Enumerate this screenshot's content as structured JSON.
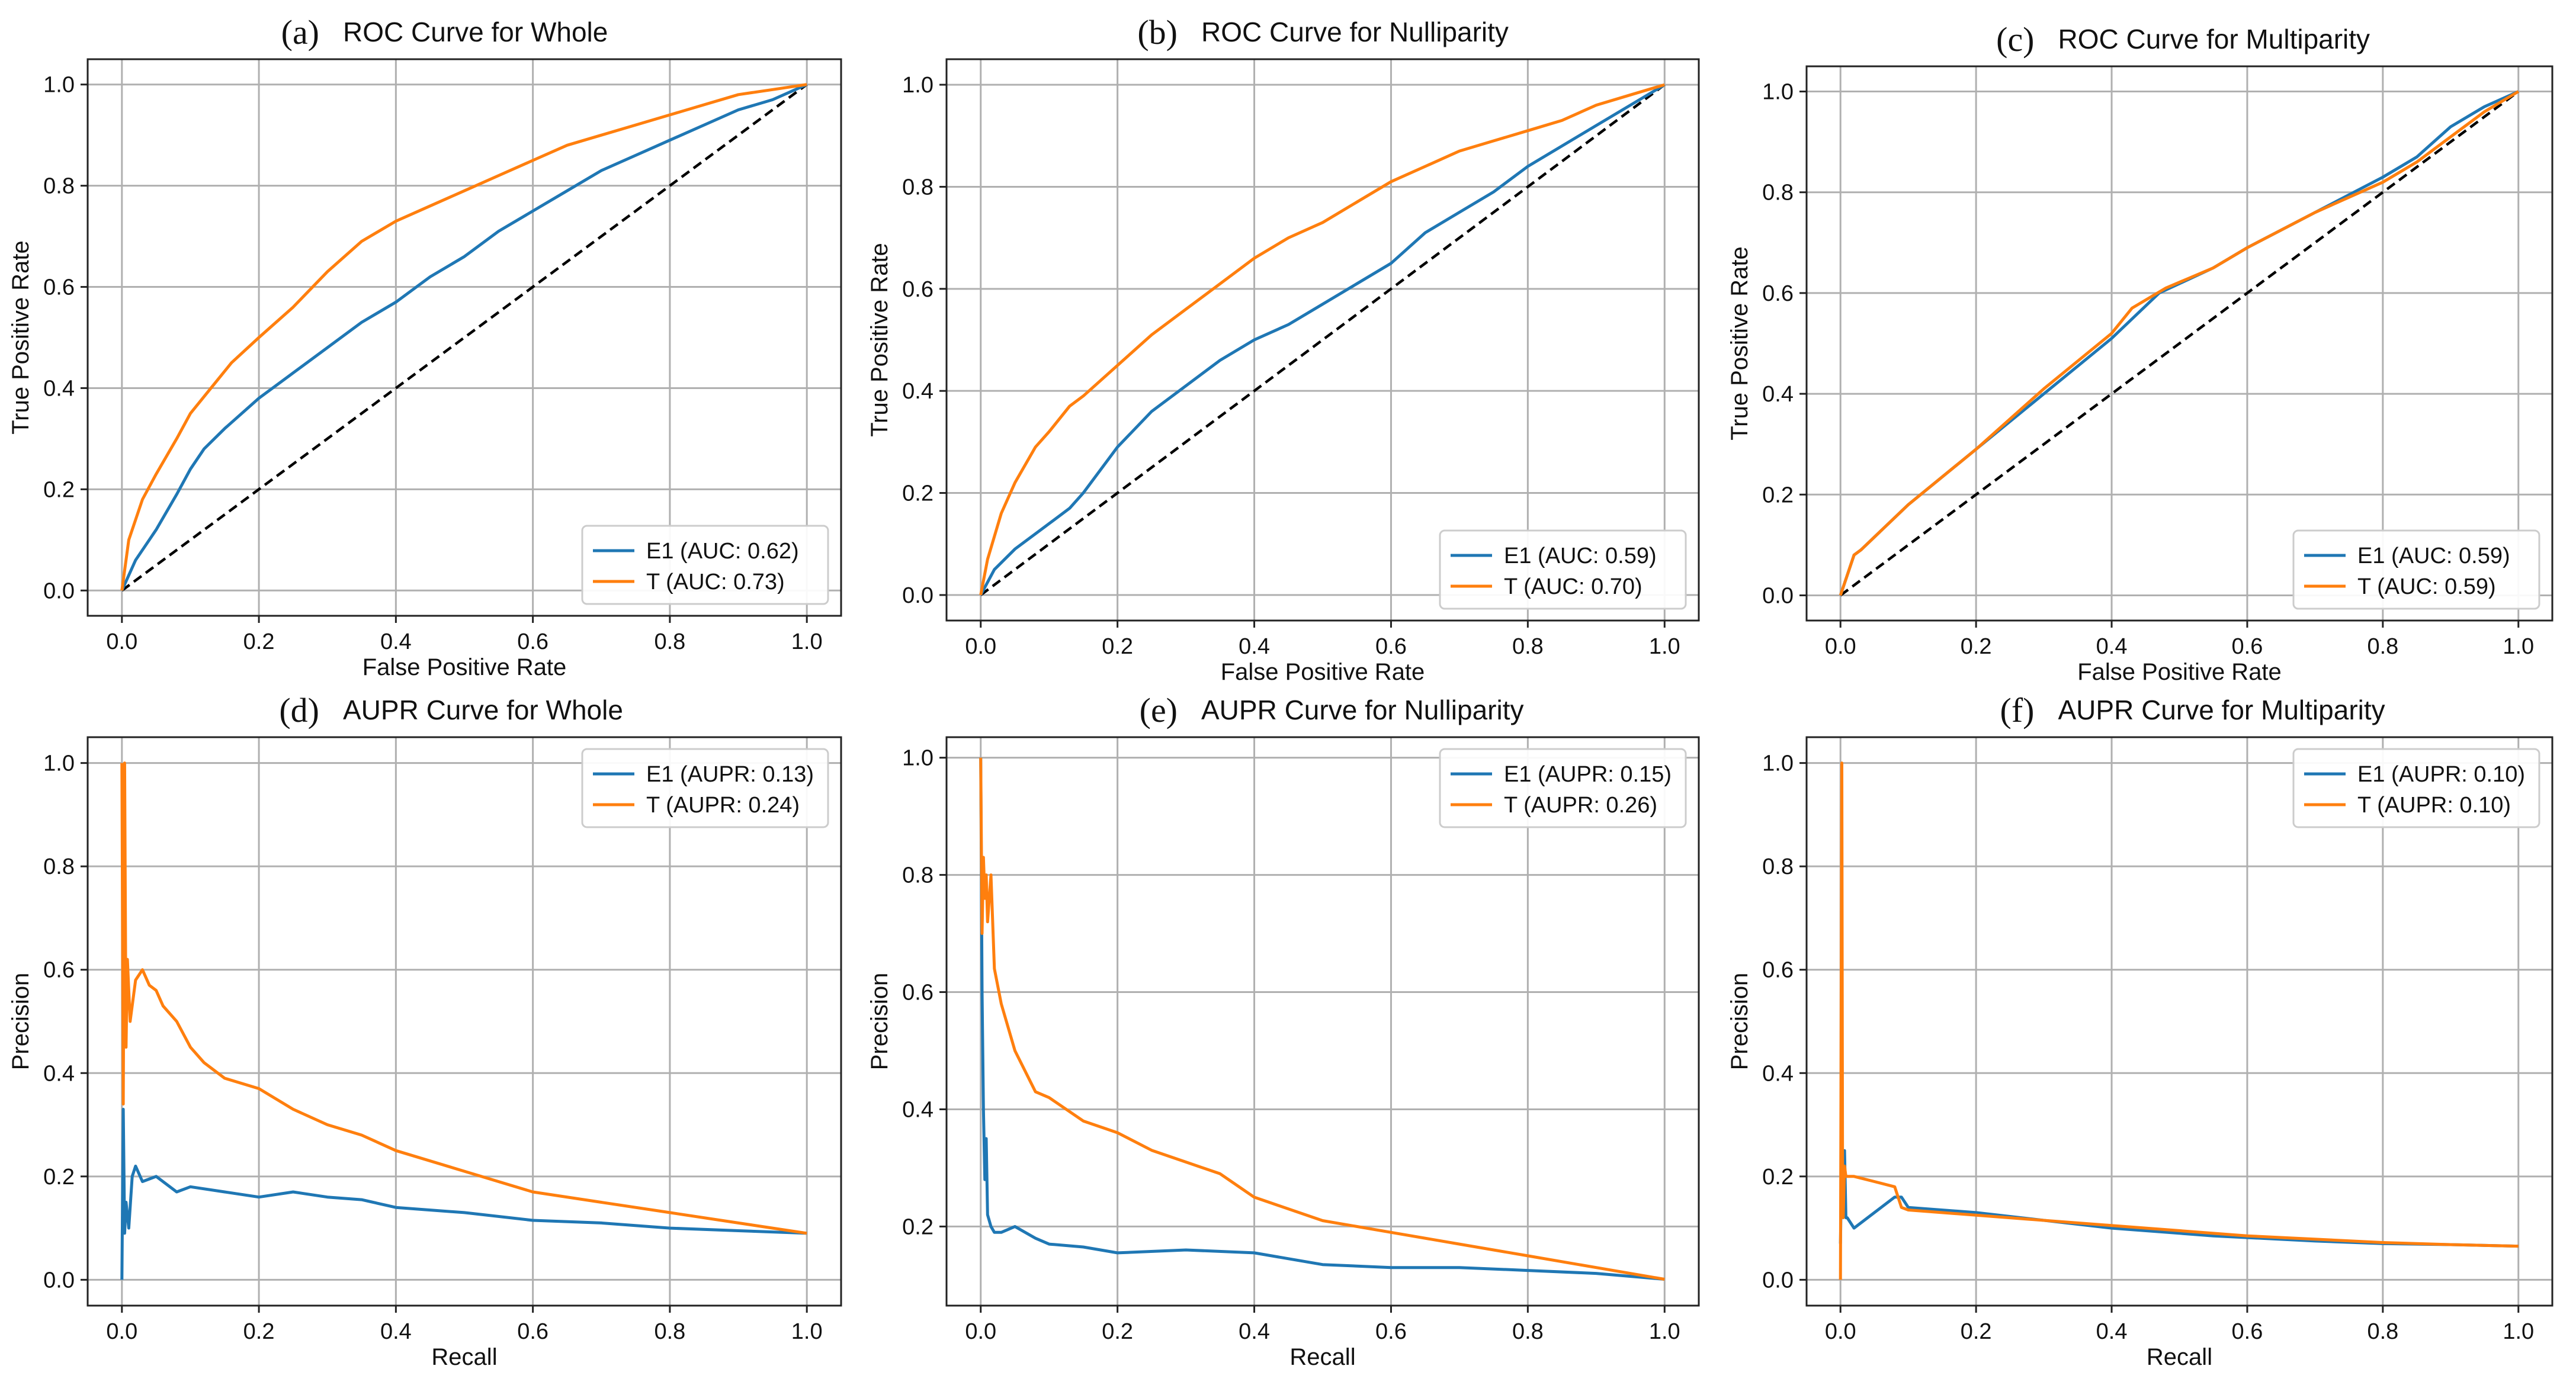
{
  "figure": {
    "colors": {
      "E1": "#1f77b4",
      "T": "#ff7f0e",
      "diagonal": "#000000",
      "grid": "#b0b0b0"
    }
  },
  "chart_data": [
    {
      "id": "a",
      "letter": "(a)",
      "type": "line",
      "title": "ROC Curve for Whole",
      "xlabel": "False Positive Rate",
      "ylabel": "True Positive Rate",
      "xlim": [
        -0.05,
        1.05
      ],
      "ylim": [
        -0.05,
        1.05
      ],
      "grid": true,
      "legend_position": "lower-right",
      "xticks": [
        "0.0",
        "0.2",
        "0.4",
        "0.6",
        "0.8",
        "1.0"
      ],
      "yticks": [
        "0.0",
        "0.2",
        "0.4",
        "0.6",
        "0.8",
        "1.0"
      ],
      "reference_line": {
        "x": [
          0,
          1
        ],
        "y": [
          0,
          1
        ],
        "style": "dashed"
      },
      "series": [
        {
          "name": "E1",
          "label": "E1 (AUC: 0.62)",
          "x": [
            0,
            0.02,
            0.05,
            0.08,
            0.1,
            0.12,
            0.15,
            0.2,
            0.25,
            0.3,
            0.35,
            0.4,
            0.45,
            0.5,
            0.55,
            0.6,
            0.65,
            0.7,
            0.75,
            0.8,
            0.85,
            0.9,
            0.95,
            1.0
          ],
          "y": [
            0,
            0.06,
            0.12,
            0.19,
            0.24,
            0.28,
            0.32,
            0.38,
            0.43,
            0.48,
            0.53,
            0.57,
            0.62,
            0.66,
            0.71,
            0.75,
            0.79,
            0.83,
            0.86,
            0.89,
            0.92,
            0.95,
            0.97,
            1.0
          ]
        },
        {
          "name": "T",
          "label": "T (AUC: 0.73)",
          "x": [
            0,
            0.01,
            0.03,
            0.05,
            0.08,
            0.1,
            0.13,
            0.16,
            0.2,
            0.25,
            0.3,
            0.35,
            0.4,
            0.45,
            0.5,
            0.55,
            0.6,
            0.65,
            0.7,
            0.75,
            0.8,
            0.85,
            0.9,
            0.95,
            1.0
          ],
          "y": [
            0,
            0.1,
            0.18,
            0.23,
            0.3,
            0.35,
            0.4,
            0.45,
            0.5,
            0.56,
            0.63,
            0.69,
            0.73,
            0.76,
            0.79,
            0.82,
            0.85,
            0.88,
            0.9,
            0.92,
            0.94,
            0.96,
            0.98,
            0.99,
            1.0
          ]
        }
      ]
    },
    {
      "id": "b",
      "letter": "(b)",
      "type": "line",
      "title": "ROC Curve for Nulliparity",
      "xlabel": "False Positive Rate",
      "ylabel": "True Positive Rate",
      "xlim": [
        -0.05,
        1.05
      ],
      "ylim": [
        -0.05,
        1.05
      ],
      "grid": true,
      "legend_position": "lower-right",
      "xticks": [
        "0.0",
        "0.2",
        "0.4",
        "0.6",
        "0.8",
        "1.0"
      ],
      "yticks": [
        "0.0",
        "0.2",
        "0.4",
        "0.6",
        "0.8",
        "1.0"
      ],
      "reference_line": {
        "x": [
          0,
          1
        ],
        "y": [
          0,
          1
        ],
        "style": "dashed"
      },
      "series": [
        {
          "name": "E1",
          "label": "E1 (AUC: 0.59)",
          "x": [
            0,
            0.02,
            0.05,
            0.08,
            0.1,
            0.13,
            0.15,
            0.2,
            0.25,
            0.3,
            0.35,
            0.4,
            0.45,
            0.5,
            0.55,
            0.6,
            0.65,
            0.7,
            0.75,
            0.8,
            0.85,
            0.9,
            0.95,
            1.0
          ],
          "y": [
            0,
            0.05,
            0.09,
            0.12,
            0.14,
            0.17,
            0.2,
            0.29,
            0.36,
            0.41,
            0.46,
            0.5,
            0.53,
            0.57,
            0.61,
            0.65,
            0.71,
            0.75,
            0.79,
            0.84,
            0.88,
            0.92,
            0.96,
            1.0
          ]
        },
        {
          "name": "T",
          "label": "T (AUC: 0.70)",
          "x": [
            0,
            0.01,
            0.03,
            0.05,
            0.08,
            0.1,
            0.13,
            0.15,
            0.2,
            0.25,
            0.3,
            0.35,
            0.4,
            0.45,
            0.5,
            0.55,
            0.6,
            0.65,
            0.7,
            0.75,
            0.8,
            0.85,
            0.9,
            0.95,
            1.0
          ],
          "y": [
            0,
            0.07,
            0.16,
            0.22,
            0.29,
            0.32,
            0.37,
            0.39,
            0.45,
            0.51,
            0.56,
            0.61,
            0.66,
            0.7,
            0.73,
            0.77,
            0.81,
            0.84,
            0.87,
            0.89,
            0.91,
            0.93,
            0.96,
            0.98,
            1.0
          ]
        }
      ]
    },
    {
      "id": "c",
      "letter": "(c)",
      "type": "line",
      "title": "ROC Curve for Multiparity",
      "xlabel": "False Positive Rate",
      "ylabel": "True Positive Rate",
      "xlim": [
        -0.05,
        1.05
      ],
      "ylim": [
        -0.05,
        1.05
      ],
      "grid": true,
      "legend_position": "lower-right",
      "xticks": [
        "0.0",
        "0.2",
        "0.4",
        "0.6",
        "0.8",
        "1.0"
      ],
      "yticks": [
        "0.0",
        "0.2",
        "0.4",
        "0.6",
        "0.8",
        "1.0"
      ],
      "reference_line": {
        "x": [
          0,
          1
        ],
        "y": [
          0,
          1
        ],
        "style": "dashed"
      },
      "series": [
        {
          "name": "E1",
          "label": "E1 (AUC: 0.59)",
          "x": [
            0,
            0.02,
            0.03,
            0.1,
            0.2,
            0.3,
            0.4,
            0.47,
            0.55,
            0.6,
            0.7,
            0.8,
            0.85,
            0.9,
            0.95,
            1.0
          ],
          "y": [
            0,
            0.08,
            0.09,
            0.18,
            0.29,
            0.4,
            0.51,
            0.6,
            0.65,
            0.69,
            0.76,
            0.83,
            0.87,
            0.93,
            0.97,
            1.0
          ]
        },
        {
          "name": "T",
          "label": "T (AUC: 0.59)",
          "x": [
            0,
            0.02,
            0.03,
            0.1,
            0.2,
            0.3,
            0.4,
            0.43,
            0.48,
            0.55,
            0.6,
            0.7,
            0.8,
            0.85,
            0.9,
            0.95,
            1.0
          ],
          "y": [
            0,
            0.08,
            0.09,
            0.18,
            0.29,
            0.41,
            0.52,
            0.57,
            0.61,
            0.65,
            0.69,
            0.76,
            0.82,
            0.86,
            0.91,
            0.96,
            1.0
          ]
        }
      ]
    },
    {
      "id": "d",
      "letter": "(d)",
      "type": "line",
      "title": "AUPR Curve for Whole",
      "xlabel": "Recall",
      "ylabel": "Precision",
      "xlim": [
        -0.05,
        1.05
      ],
      "ylim": [
        -0.05,
        1.05
      ],
      "grid": true,
      "legend_position": "top-right",
      "xticks": [
        "0.0",
        "0.2",
        "0.4",
        "0.6",
        "0.8",
        "1.0"
      ],
      "yticks": [
        "0.0",
        "0.2",
        "0.4",
        "0.6",
        "0.8",
        "1.0"
      ],
      "series": [
        {
          "name": "E1",
          "label": "E1 (AUPR: 0.13)",
          "x": [
            0,
            0.002,
            0.004,
            0.006,
            0.01,
            0.015,
            0.02,
            0.03,
            0.05,
            0.08,
            0.1,
            0.15,
            0.2,
            0.25,
            0.3,
            0.35,
            0.4,
            0.5,
            0.6,
            0.7,
            0.8,
            0.9,
            1.0
          ],
          "y": [
            0,
            0.33,
            0.09,
            0.15,
            0.1,
            0.2,
            0.22,
            0.19,
            0.2,
            0.17,
            0.18,
            0.17,
            0.16,
            0.17,
            0.16,
            0.155,
            0.14,
            0.13,
            0.115,
            0.11,
            0.1,
            0.095,
            0.09
          ]
        },
        {
          "name": "T",
          "label": "T (AUPR: 0.24)",
          "x": [
            0,
            0.002,
            0.004,
            0.006,
            0.008,
            0.012,
            0.02,
            0.03,
            0.04,
            0.05,
            0.06,
            0.08,
            0.1,
            0.12,
            0.15,
            0.2,
            0.25,
            0.3,
            0.35,
            0.4,
            0.5,
            0.6,
            0.7,
            0.8,
            0.9,
            1.0
          ],
          "y": [
            1.0,
            0.34,
            1.0,
            0.45,
            0.62,
            0.5,
            0.58,
            0.6,
            0.57,
            0.56,
            0.53,
            0.5,
            0.45,
            0.42,
            0.39,
            0.37,
            0.33,
            0.3,
            0.28,
            0.25,
            0.21,
            0.17,
            0.15,
            0.13,
            0.11,
            0.09
          ]
        }
      ]
    },
    {
      "id": "e",
      "letter": "(e)",
      "type": "line",
      "title": "AUPR Curve for Nulliparity",
      "xlabel": "Recall",
      "ylabel": "Precision",
      "xlim": [
        -0.05,
        1.05
      ],
      "ylim": [
        0.065,
        1.035
      ],
      "grid": true,
      "legend_position": "top-right",
      "xticks": [
        "0.0",
        "0.2",
        "0.4",
        "0.6",
        "0.8",
        "1.0"
      ],
      "yticks": [
        "0.2",
        "0.4",
        "0.6",
        "0.8",
        "1.0"
      ],
      "yticks_values": [
        0.2,
        0.4,
        0.6,
        0.8,
        1.0
      ],
      "series": [
        {
          "name": "E1",
          "label": "E1 (AUPR: 0.15)",
          "x": [
            0,
            0.002,
            0.004,
            0.006,
            0.008,
            0.01,
            0.015,
            0.02,
            0.03,
            0.05,
            0.08,
            0.1,
            0.15,
            0.2,
            0.3,
            0.4,
            0.5,
            0.6,
            0.7,
            0.8,
            0.9,
            1.0
          ],
          "y": [
            1.0,
            0.6,
            0.4,
            0.28,
            0.35,
            0.22,
            0.2,
            0.19,
            0.19,
            0.2,
            0.18,
            0.17,
            0.165,
            0.155,
            0.16,
            0.155,
            0.135,
            0.13,
            0.13,
            0.125,
            0.12,
            0.11
          ]
        },
        {
          "name": "T",
          "label": "T (AUPR: 0.26)",
          "x": [
            0,
            0.002,
            0.004,
            0.006,
            0.008,
            0.01,
            0.015,
            0.02,
            0.03,
            0.05,
            0.08,
            0.1,
            0.15,
            0.2,
            0.25,
            0.3,
            0.35,
            0.4,
            0.5,
            0.6,
            0.7,
            0.8,
            0.9,
            1.0
          ],
          "y": [
            1.0,
            0.7,
            0.83,
            0.76,
            0.8,
            0.72,
            0.8,
            0.64,
            0.58,
            0.5,
            0.43,
            0.42,
            0.38,
            0.36,
            0.33,
            0.31,
            0.29,
            0.25,
            0.21,
            0.19,
            0.17,
            0.15,
            0.13,
            0.11
          ]
        }
      ]
    },
    {
      "id": "f",
      "letter": "(f)",
      "type": "line",
      "title": "AUPR Curve for Multiparity",
      "xlabel": "Recall",
      "ylabel": "Precision",
      "xlim": [
        -0.05,
        1.05
      ],
      "ylim": [
        -0.05,
        1.05
      ],
      "grid": true,
      "legend_position": "top-right",
      "xticks": [
        "0.0",
        "0.2",
        "0.4",
        "0.6",
        "0.8",
        "1.0"
      ],
      "yticks": [
        "0.0",
        "0.2",
        "0.4",
        "0.6",
        "0.8",
        "1.0"
      ],
      "series": [
        {
          "name": "E1",
          "label": "E1 (AUPR: 0.10)",
          "x": [
            0,
            0.002,
            0.004,
            0.006,
            0.008,
            0.01,
            0.02,
            0.05,
            0.08,
            0.09,
            0.1,
            0.2,
            0.4,
            0.55,
            0.7,
            0.8,
            0.9,
            1.0
          ],
          "y": [
            0.07,
            0.25,
            0.13,
            0.25,
            0.12,
            0.12,
            0.1,
            0.13,
            0.16,
            0.16,
            0.14,
            0.13,
            0.1,
            0.085,
            0.075,
            0.07,
            0.068,
            0.065
          ]
        },
        {
          "name": "T",
          "label": "T (AUPR: 0.10)",
          "x": [
            0,
            0.002,
            0.003,
            0.004,
            0.006,
            0.008,
            0.01,
            0.02,
            0.05,
            0.08,
            0.09,
            0.1,
            0.2,
            0.4,
            0.6,
            0.8,
            0.9,
            1.0
          ],
          "y": [
            0,
            1.0,
            0.22,
            0.12,
            0.22,
            0.2,
            0.2,
            0.2,
            0.19,
            0.18,
            0.14,
            0.135,
            0.125,
            0.105,
            0.085,
            0.072,
            0.068,
            0.065
          ]
        }
      ]
    }
  ]
}
